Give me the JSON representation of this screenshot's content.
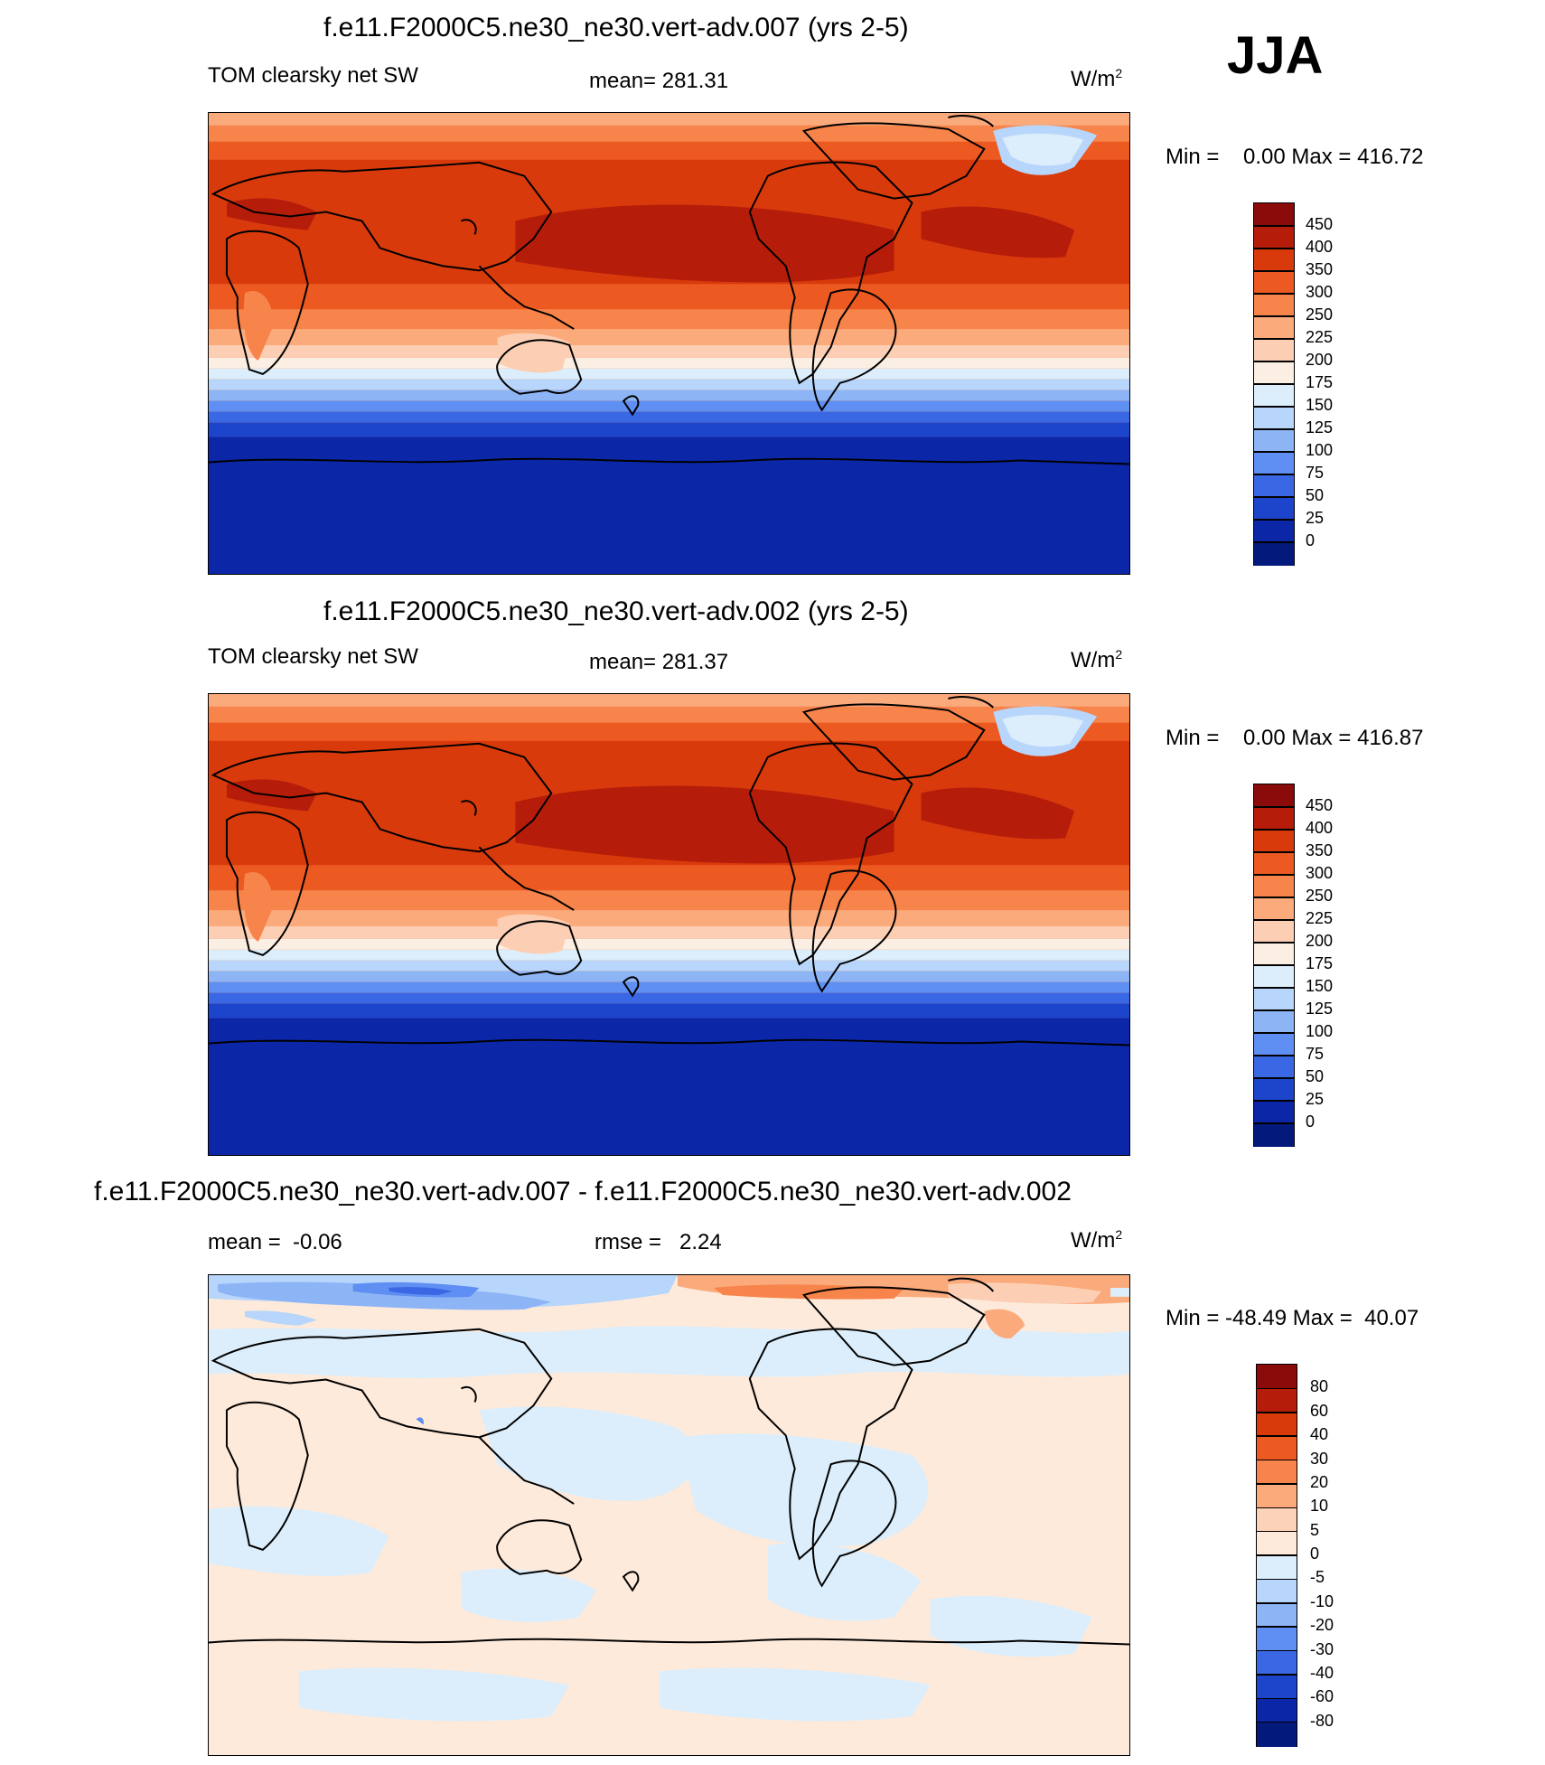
{
  "season": "JJA",
  "panels": [
    {
      "id": "p1",
      "title": "f.e11.F2000C5.ne30_ne30.vert-adv.007 (yrs 2-5)",
      "left_label": "TOM clearsky net SW",
      "center_label": "mean= 281.31",
      "unit_base": "W/m",
      "unit_sup": "2",
      "minmax": "Min =    0.00 Max = 416.72",
      "colorbar": {
        "labels": [
          "450",
          "400",
          "350",
          "300",
          "250",
          "225",
          "200",
          "175",
          "150",
          "125",
          "100",
          "75",
          "50",
          "25",
          "0"
        ],
        "colors": [
          "#8b0a0a",
          "#b51d0a",
          "#d93a0c",
          "#ec5a22",
          "#f7844a",
          "#fbaa7c",
          "#fccfb4",
          "#fbeee2",
          "#dceefb",
          "#b8d6fb",
          "#8db5f6",
          "#5f8ff2",
          "#3a68e4",
          "#1c45cc",
          "#0c26a8",
          "#031a7c"
        ]
      }
    },
    {
      "id": "p2",
      "title": "f.e11.F2000C5.ne30_ne30.vert-adv.002 (yrs 2-5)",
      "left_label": "TOM clearsky net SW",
      "center_label": "mean= 281.37",
      "unit_base": "W/m",
      "unit_sup": "2",
      "minmax": "Min =    0.00 Max = 416.87",
      "colorbar": {
        "labels": [
          "450",
          "400",
          "350",
          "300",
          "250",
          "225",
          "200",
          "175",
          "150",
          "125",
          "100",
          "75",
          "50",
          "25",
          "0"
        ],
        "colors": [
          "#8b0a0a",
          "#b51d0a",
          "#d93a0c",
          "#ec5a22",
          "#f7844a",
          "#fbaa7c",
          "#fccfb4",
          "#fbeee2",
          "#dceefb",
          "#b8d6fb",
          "#8db5f6",
          "#5f8ff2",
          "#3a68e4",
          "#1c45cc",
          "#0c26a8",
          "#031a7c"
        ]
      }
    },
    {
      "id": "p3",
      "title": "f.e11.F2000C5.ne30_ne30.vert-adv.007 - f.e11.F2000C5.ne30_ne30.vert-adv.002",
      "left_label": "mean =  -0.06",
      "center_label": "rmse =   2.24",
      "unit_base": "W/m",
      "unit_sup": "2",
      "minmax": "Min = -48.49 Max =  40.07",
      "colorbar": {
        "labels": [
          "80",
          "60",
          "40",
          "30",
          "20",
          "10",
          "5",
          "0",
          "-5",
          "-10",
          "-20",
          "-30",
          "-40",
          "-60",
          "-80"
        ],
        "colors": [
          "#8b0a0a",
          "#b51d0a",
          "#d93a0c",
          "#ec5a22",
          "#f7844a",
          "#fbaa7c",
          "#fcd2b8",
          "#fdeadb",
          "#dceefb",
          "#b8d6fb",
          "#8db5f6",
          "#5f8ff2",
          "#3a68e4",
          "#1c45cc",
          "#0c26a8",
          "#031a7c"
        ]
      }
    }
  ]
}
